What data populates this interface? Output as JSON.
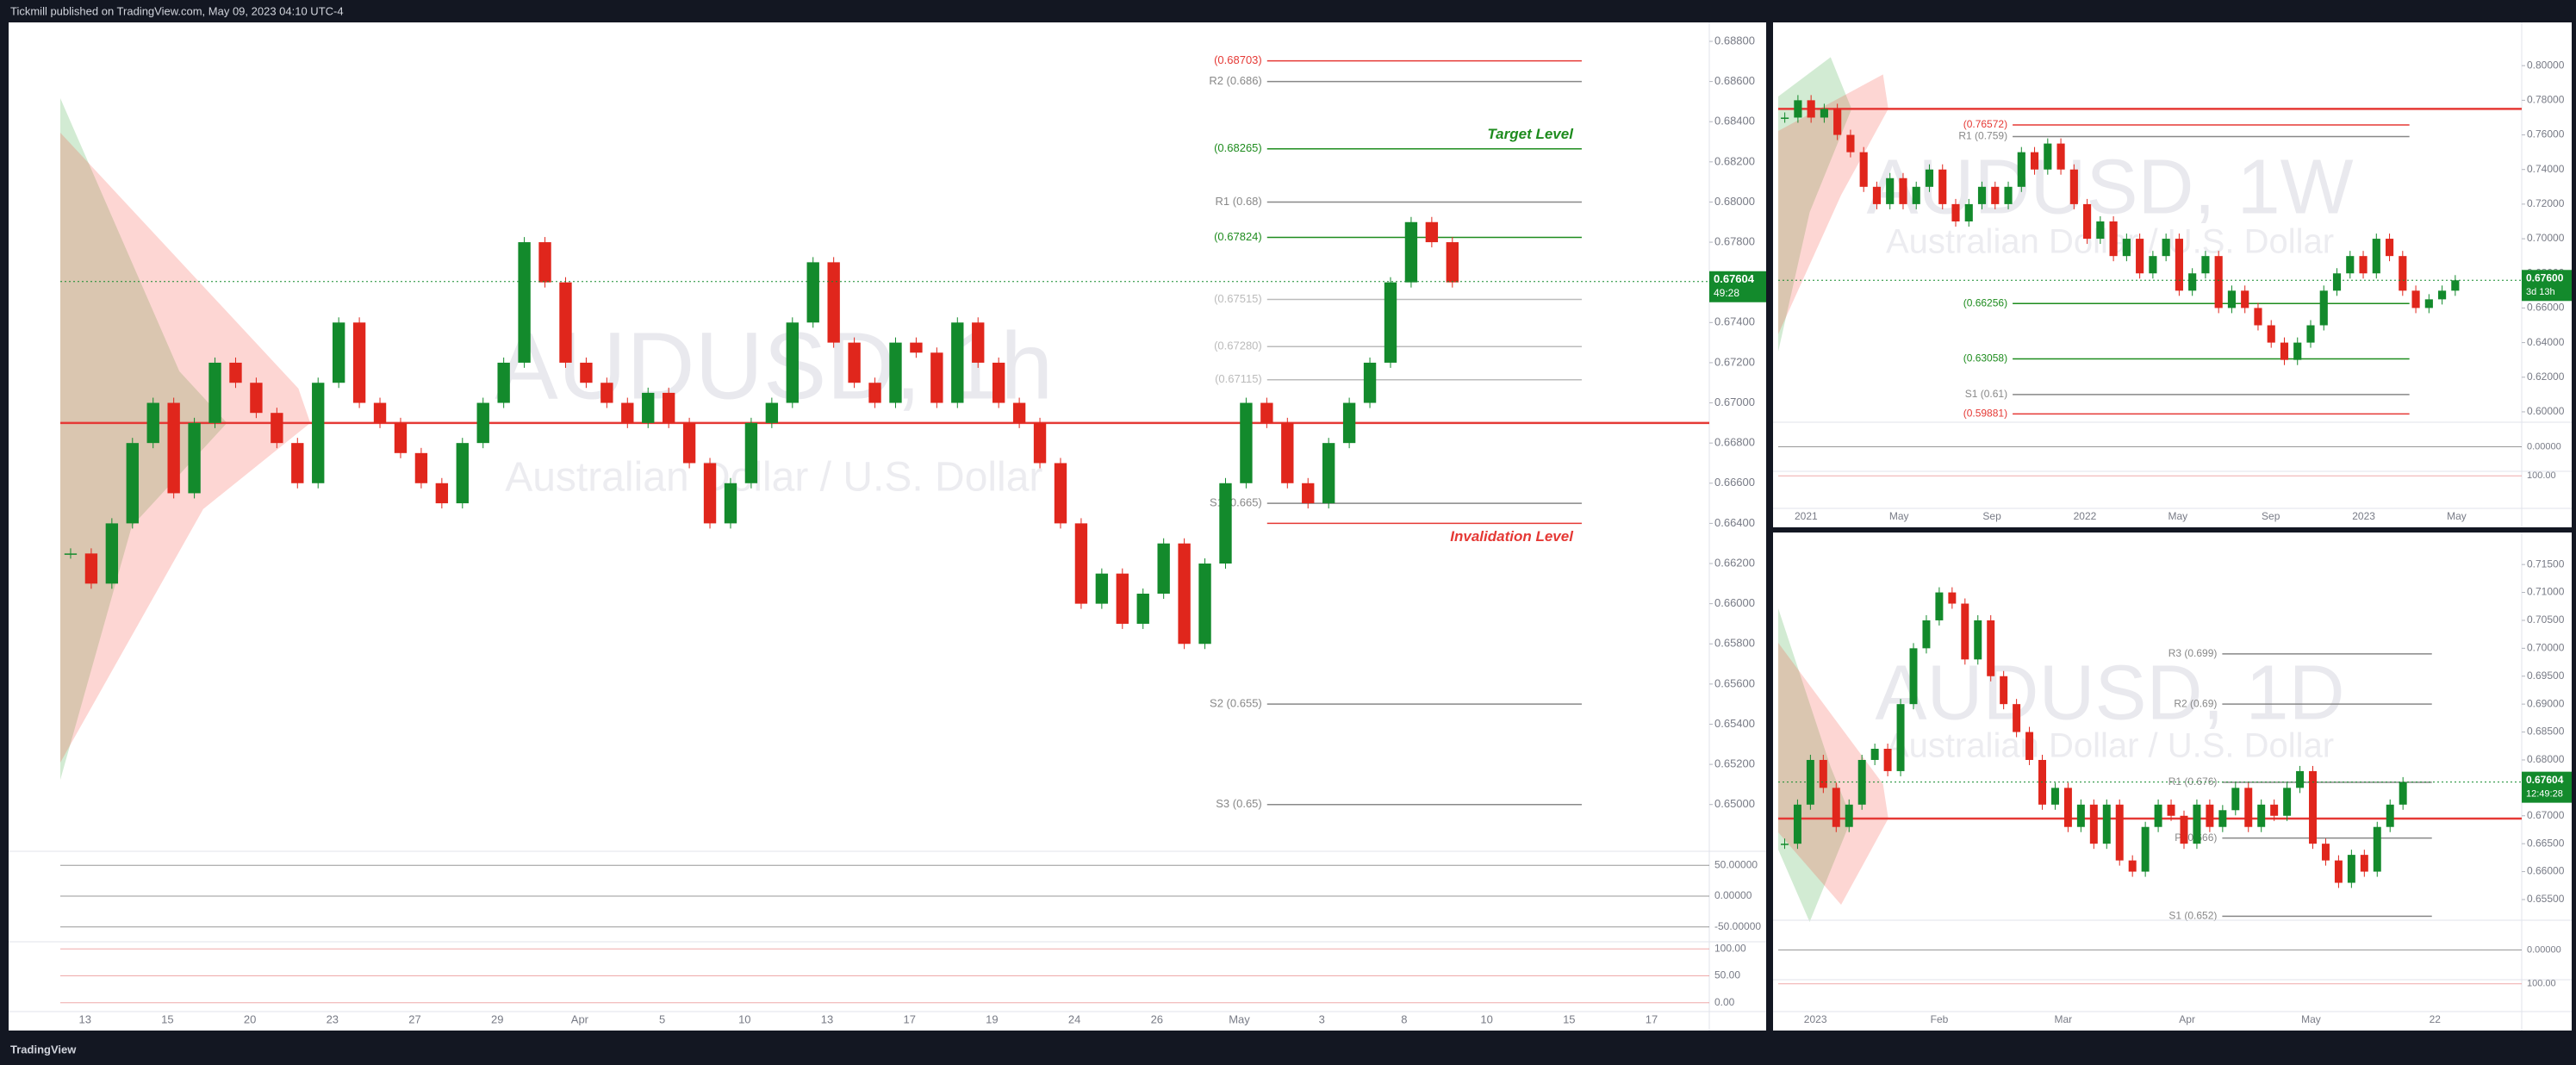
{
  "header": "Tickmill published on TradingView.com, May 09, 2023 04:10 UTC-4",
  "footer": "TradingView",
  "chart_data": [
    {
      "type": "candlestick",
      "title": "AUDUSD, 1h",
      "subtitle": "Australian Dollar / U.S. Dollar",
      "values": [
        0.6625,
        0.661,
        0.664,
        0.668,
        0.67,
        0.6655,
        0.669,
        0.672,
        0.671,
        0.6695,
        0.668,
        0.666,
        0.671,
        0.674,
        0.67,
        0.669,
        0.6675,
        0.666,
        0.665,
        0.668,
        0.67,
        0.672,
        0.678,
        0.676,
        0.672,
        0.671,
        0.67,
        0.669,
        0.6705,
        0.669,
        0.667,
        0.664,
        0.666,
        0.669,
        0.67,
        0.674,
        0.677,
        0.673,
        0.671,
        0.67,
        0.673,
        0.6725,
        0.67,
        0.674,
        0.672,
        0.67,
        0.669,
        0.667,
        0.664,
        0.66,
        0.6615,
        0.659,
        0.6605,
        0.663,
        0.658,
        0.662,
        0.666,
        0.67,
        0.669,
        0.666,
        0.665,
        0.668,
        0.67,
        0.672,
        0.676,
        0.679,
        0.678,
        0.676
      ],
      "ylim": [
        0.6478,
        0.6886
      ],
      "yticks": [
        {
          "value": 0.65,
          "label": "0.65000"
        },
        {
          "value": 0.652,
          "label": "0.65200"
        },
        {
          "value": 0.654,
          "label": "0.65400"
        },
        {
          "value": 0.656,
          "label": "0.65600"
        },
        {
          "value": 0.658,
          "label": "0.65800"
        },
        {
          "value": 0.66,
          "label": "0.66000"
        },
        {
          "value": 0.662,
          "label": "0.66200"
        },
        {
          "value": 0.664,
          "label": "0.66400"
        },
        {
          "value": 0.666,
          "label": "0.66600"
        },
        {
          "value": 0.668,
          "label": "0.66800"
        },
        {
          "value": 0.67,
          "label": "0.67000"
        },
        {
          "value": 0.672,
          "label": "0.67200"
        },
        {
          "value": 0.674,
          "label": "0.67400"
        },
        {
          "value": 0.676,
          "label": "0.67600"
        },
        {
          "value": 0.678,
          "label": "0.67800"
        },
        {
          "value": 0.68,
          "label": "0.68000"
        },
        {
          "value": 0.682,
          "label": "0.68200"
        },
        {
          "value": 0.684,
          "label": "0.68400"
        },
        {
          "value": 0.686,
          "label": "0.68600"
        },
        {
          "value": 0.688,
          "label": "0.68800"
        }
      ],
      "time_labels": [
        "13",
        "15",
        "20",
        "23",
        "27",
        "29",
        "Apr",
        "5",
        "10",
        "13",
        "17",
        "19",
        "24",
        "26",
        "May",
        "3",
        "8",
        "10",
        "15",
        "17"
      ],
      "levels": [
        {
          "value": 0.68703,
          "label": "(0.68703)",
          "color": "#e53935"
        },
        {
          "value": 0.686,
          "label": "R2 (0.686)",
          "color": "#888888"
        },
        {
          "value": 0.68265,
          "label": "(0.68265)",
          "color": "#1e8c1e",
          "note": "Target Level"
        },
        {
          "value": 0.68,
          "label": "R1 (0.68)",
          "color": "#888888"
        },
        {
          "value": 0.67824,
          "label": "(0.67824)",
          "color": "#1e8c1e"
        },
        {
          "value": 0.67515,
          "label": "(0.67515)",
          "color": "#bbbbbb"
        },
        {
          "value": 0.6728,
          "label": "(0.67280)",
          "color": "#bbbbbb"
        },
        {
          "value": 0.67115,
          "label": "(0.67115)",
          "color": "#bbbbbb"
        },
        {
          "value": 0.665,
          "label": "S1 (0.665)",
          "color": "#888888"
        },
        {
          "value": 0.664,
          "color": "#e53935",
          "note": "Invalidation Level"
        },
        {
          "value": 0.655,
          "label": "S2 (0.655)",
          "color": "#888888"
        },
        {
          "value": 0.65,
          "label": "S3 (0.65)",
          "color": "#888888"
        },
        {
          "value": 0.669,
          "color": "#e53935",
          "full": true
        }
      ],
      "price_tag": {
        "value": 0.67604,
        "label": "0.67604",
        "timer": "49:28"
      },
      "panes": [
        {
          "ylim": [
            -70,
            70
          ],
          "yticks": [
            {
              "value": 50,
              "label": "50.00000"
            },
            {
              "value": 0,
              "label": "0.00000"
            },
            {
              "value": -50,
              "label": "-50.00000"
            }
          ]
        },
        {
          "ylim": [
            -10,
            110
          ],
          "yticks": [
            {
              "value": 100,
              "label": "100.00"
            },
            {
              "value": 50,
              "label": "50.00"
            },
            {
              "value": 0,
              "label": "0.00"
            }
          ]
        }
      ]
    },
    {
      "type": "candlestick",
      "title": "AUDUSD, 1W",
      "subtitle": "Australian Dollar / U.S. Dollar",
      "values": [
        0.77,
        0.78,
        0.77,
        0.775,
        0.76,
        0.75,
        0.73,
        0.72,
        0.735,
        0.72,
        0.73,
        0.74,
        0.72,
        0.71,
        0.72,
        0.73,
        0.72,
        0.73,
        0.75,
        0.74,
        0.755,
        0.74,
        0.72,
        0.7,
        0.71,
        0.69,
        0.7,
        0.68,
        0.69,
        0.7,
        0.67,
        0.68,
        0.69,
        0.66,
        0.67,
        0.66,
        0.65,
        0.64,
        0.63,
        0.64,
        0.65,
        0.67,
        0.68,
        0.69,
        0.68,
        0.7,
        0.69,
        0.67,
        0.66,
        0.665,
        0.67,
        0.676
      ],
      "ylim": [
        0.595,
        0.822
      ],
      "yticks": [
        {
          "value": 0.6,
          "label": "0.60000"
        },
        {
          "value": 0.62,
          "label": "0.62000"
        },
        {
          "value": 0.64,
          "label": "0.64000"
        },
        {
          "value": 0.66,
          "label": "0.66000"
        },
        {
          "value": 0.68,
          "label": "0.68000"
        },
        {
          "value": 0.7,
          "label": "0.70000"
        },
        {
          "value": 0.72,
          "label": "0.72000"
        },
        {
          "value": 0.74,
          "label": "0.74000"
        },
        {
          "value": 0.76,
          "label": "0.76000"
        },
        {
          "value": 0.78,
          "label": "0.78000"
        },
        {
          "value": 0.8,
          "label": "0.80000"
        }
      ],
      "time_labels": [
        "2021",
        "May",
        "Sep",
        "2022",
        "May",
        "Sep",
        "2023",
        "May"
      ],
      "levels": [
        {
          "value": 0.76572,
          "label": "(0.76572)",
          "color": "#e53935"
        },
        {
          "value": 0.759,
          "label": "R1 (0.759)",
          "color": "#888888"
        },
        {
          "value": 0.66256,
          "label": "(0.66256)",
          "color": "#1e8c1e"
        },
        {
          "value": 0.63058,
          "label": "(0.63058)",
          "color": "#1e8c1e"
        },
        {
          "value": 0.61,
          "label": "S1 (0.61)",
          "color": "#888888"
        },
        {
          "value": 0.59881,
          "label": "(0.59881)",
          "color": "#e53935"
        },
        {
          "value": 0.775,
          "color": "#e53935",
          "full": true
        }
      ],
      "price_tag": {
        "value": 0.676,
        "label": "0.67600",
        "timer": "3d 13h"
      },
      "panes": [
        {
          "ylim": [
            -70,
            70
          ],
          "yticks": [
            {
              "value": 0,
              "label": "0.00000"
            }
          ]
        },
        {
          "ylim": [
            -10,
            110
          ],
          "yticks": [
            {
              "value": 100,
              "label": "100.00"
            }
          ]
        }
      ]
    },
    {
      "type": "candlestick",
      "title": "AUDUSD, 1D",
      "subtitle": "Australian Dollar / U.S. Dollar",
      "values": [
        0.665,
        0.672,
        0.68,
        0.675,
        0.668,
        0.672,
        0.68,
        0.682,
        0.678,
        0.69,
        0.7,
        0.705,
        0.71,
        0.708,
        0.698,
        0.705,
        0.695,
        0.69,
        0.685,
        0.68,
        0.672,
        0.675,
        0.668,
        0.672,
        0.665,
        0.672,
        0.662,
        0.66,
        0.668,
        0.672,
        0.67,
        0.665,
        0.672,
        0.668,
        0.671,
        0.675,
        0.668,
        0.672,
        0.67,
        0.675,
        0.678,
        0.665,
        0.662,
        0.658,
        0.663,
        0.66,
        0.668,
        0.672,
        0.676
      ],
      "ylim": [
        0.6516,
        0.7195
      ],
      "yticks": [
        {
          "value": 0.655,
          "label": "0.65500"
        },
        {
          "value": 0.66,
          "label": "0.66000"
        },
        {
          "value": 0.665,
          "label": "0.66500"
        },
        {
          "value": 0.67,
          "label": "0.67000"
        },
        {
          "value": 0.675,
          "label": "0.67500"
        },
        {
          "value": 0.68,
          "label": "0.68000"
        },
        {
          "value": 0.685,
          "label": "0.68500"
        },
        {
          "value": 0.69,
          "label": "0.69000"
        },
        {
          "value": 0.695,
          "label": "0.69500"
        },
        {
          "value": 0.7,
          "label": "0.70000"
        },
        {
          "value": 0.705,
          "label": "0.70500"
        },
        {
          "value": 0.71,
          "label": "0.71000"
        },
        {
          "value": 0.715,
          "label": "0.71500"
        }
      ],
      "time_labels": [
        "2023",
        "Feb",
        "Mar",
        "Apr",
        "May",
        "22"
      ],
      "levels": [
        {
          "value": 0.699,
          "label": "R3 (0.699)",
          "color": "#888888"
        },
        {
          "value": 0.69,
          "label": "R2 (0.69)",
          "color": "#888888"
        },
        {
          "value": 0.676,
          "label": "R1 (0.676)",
          "color": "#888888"
        },
        {
          "value": 0.666,
          "label": "P (0.666)",
          "color": "#888888"
        },
        {
          "value": 0.652,
          "label": "S1 (0.652)",
          "color": "#888888"
        },
        {
          "value": 0.6695,
          "color": "#e53935",
          "full": true
        }
      ],
      "price_tag": {
        "value": 0.67604,
        "label": "0.67604",
        "timer": "12:49:28"
      },
      "panes": [
        {
          "ylim": [
            -70,
            70
          ],
          "yticks": [
            {
              "value": 0,
              "label": "0.00000"
            }
          ]
        },
        {
          "ylim": [
            -10,
            110
          ],
          "yticks": [
            {
              "value": 100,
              "label": "100.00"
            }
          ]
        }
      ]
    }
  ]
}
